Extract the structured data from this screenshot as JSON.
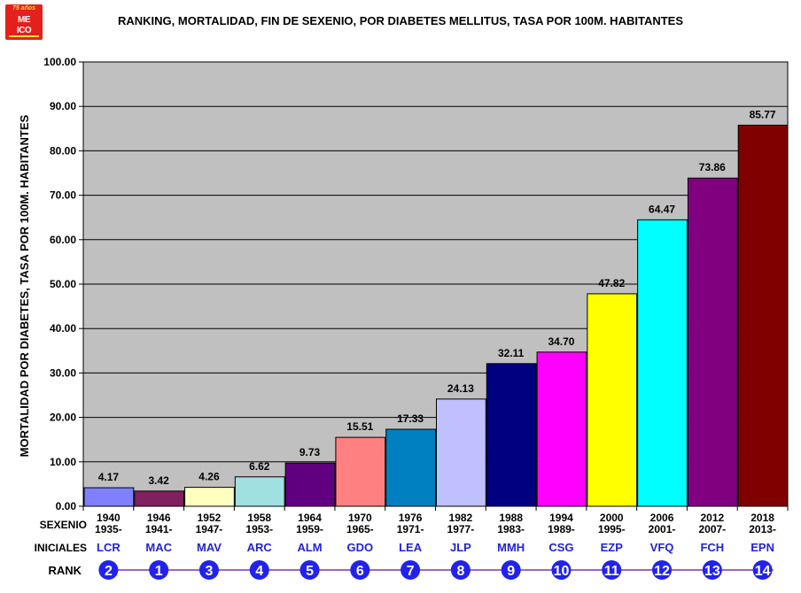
{
  "logo": {
    "line1": "75 años",
    "line2": "ME",
    "line3": "ICO"
  },
  "chart_data": {
    "type": "bar",
    "title": "RANKING, MORTALIDAD, FIN DE SEXENIO, POR  DIABETES MELLITUS, TASA POR 100M. HABITANTES",
    "ylabel": "MORTALIDAD POR DIABETES, TASA  POR 100M. HABITANTES",
    "ylim": [
      0,
      100
    ],
    "yticks": [
      "0.00",
      "10.00",
      "20.00",
      "30.00",
      "40.00",
      "50.00",
      "60.00",
      "70.00",
      "80.00",
      "90.00",
      "100.00"
    ],
    "grid": true,
    "row_labels": {
      "sexenio": "SEXENIO",
      "iniciales": "INICIALES",
      "rank": "RANK"
    },
    "categories": [
      {
        "end": "1940",
        "start": "1935-",
        "initials": "LCR",
        "rank": "2",
        "value": 4.17,
        "label": "4.17",
        "color": "#8080ff"
      },
      {
        "end": "1946",
        "start": "1941-",
        "initials": "MAC",
        "rank": "1",
        "value": 3.42,
        "label": "3.42",
        "color": "#802060"
      },
      {
        "end": "1952",
        "start": "1947-",
        "initials": "MAV",
        "rank": "3",
        "value": 4.26,
        "label": "4.26",
        "color": "#ffffc0"
      },
      {
        "end": "1958",
        "start": "1953-",
        "initials": "ARC",
        "rank": "4",
        "value": 6.62,
        "label": "6.62",
        "color": "#a0e0e0"
      },
      {
        "end": "1964",
        "start": "1959-",
        "initials": "ALM",
        "rank": "5",
        "value": 9.73,
        "label": "9.73",
        "color": "#600080"
      },
      {
        "end": "1970",
        "start": "1965-",
        "initials": "GDO",
        "rank": "6",
        "value": 15.51,
        "label": "15.51",
        "color": "#ff8080"
      },
      {
        "end": "1976",
        "start": "1971-",
        "initials": "LEA",
        "rank": "7",
        "value": 17.33,
        "label": "17.33",
        "color": "#0080c0"
      },
      {
        "end": "1982",
        "start": "1977-",
        "initials": "JLP",
        "rank": "8",
        "value": 24.13,
        "label": "24.13",
        "color": "#c0c0ff"
      },
      {
        "end": "1988",
        "start": "1983-",
        "initials": "MMH",
        "rank": "9",
        "value": 32.11,
        "label": "32.11",
        "color": "#000080"
      },
      {
        "end": "1994",
        "start": "1989-",
        "initials": "CSG",
        "rank": "10",
        "value": 34.7,
        "label": "34.70",
        "color": "#ff00ff"
      },
      {
        "end": "2000",
        "start": "1995-",
        "initials": "EZP",
        "rank": "11",
        "value": 47.82,
        "label": "47.82",
        "color": "#ffff00"
      },
      {
        "end": "2006",
        "start": "2001-",
        "initials": "VFQ",
        "rank": "12",
        "value": 64.47,
        "label": "64.47",
        "color": "#00ffff"
      },
      {
        "end": "2012",
        "start": "2007-",
        "initials": "FCH",
        "rank": "13",
        "value": 73.86,
        "label": "73.86",
        "color": "#800080"
      },
      {
        "end": "2018",
        "start": "2013-",
        "initials": "EPN",
        "rank": "14",
        "value": 85.77,
        "label": "85.77",
        "color": "#800000"
      }
    ],
    "colors": {
      "plot_bg": "#c0c0c0",
      "initials_text": "#2222dd",
      "rank_circle": "#2222ee",
      "rank_line": "#9966cc"
    }
  }
}
